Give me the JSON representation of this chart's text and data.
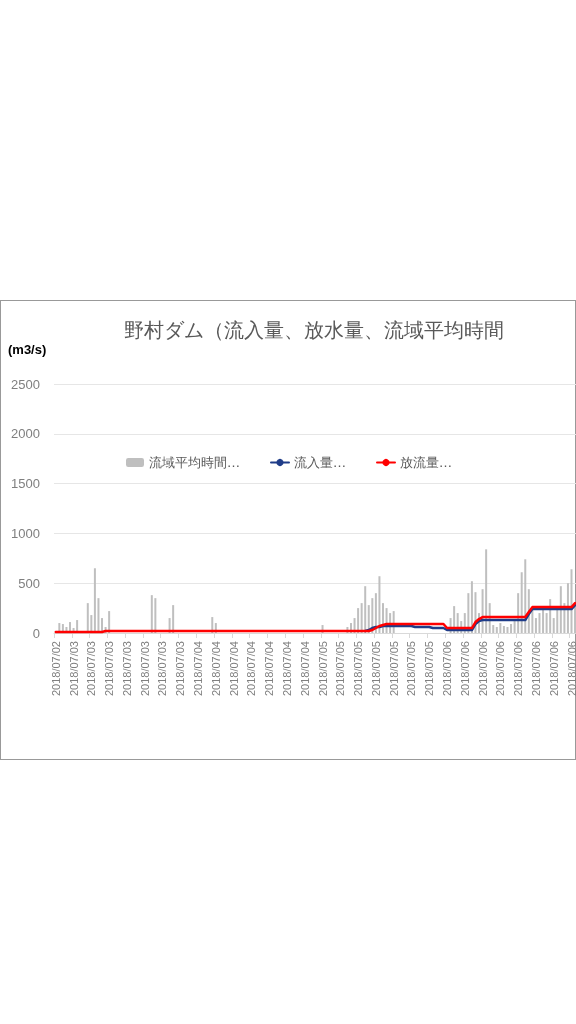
{
  "chart_data": {
    "type": "bar",
    "title": "野村ダム（流入量、放水量、流域平均時間",
    "ylabel": "(m3/s)",
    "categories": [
      "2018/07/02",
      null,
      null,
      null,
      null,
      "2018/07/03",
      null,
      null,
      null,
      null,
      "2018/07/03",
      null,
      null,
      null,
      null,
      "2018/07/03",
      null,
      null,
      null,
      null,
      "2018/07/03",
      null,
      null,
      null,
      null,
      "2018/07/03",
      null,
      null,
      null,
      null,
      "2018/07/03",
      null,
      null,
      null,
      null,
      "2018/07/03",
      null,
      null,
      null,
      null,
      "2018/07/04",
      null,
      null,
      null,
      null,
      "2018/07/04",
      null,
      null,
      null,
      null,
      "2018/07/04",
      null,
      null,
      null,
      null,
      "2018/07/04",
      null,
      null,
      null,
      null,
      "2018/07/04",
      null,
      null,
      null,
      null,
      "2018/07/04",
      null,
      null,
      null,
      null,
      "2018/07/04",
      null,
      null,
      null,
      null,
      "2018/07/05",
      null,
      null,
      null,
      null,
      "2018/07/05",
      null,
      null,
      null,
      null,
      "2018/07/05",
      null,
      null,
      null,
      null,
      "2018/07/05",
      null,
      null,
      null,
      null,
      "2018/07/05",
      null,
      null,
      null,
      null,
      "2018/07/05",
      null,
      null,
      null,
      null,
      "2018/07/05",
      null,
      null,
      null,
      null,
      "2018/07/06",
      null,
      null,
      null,
      null,
      "2018/07/06",
      null,
      null,
      null,
      null,
      "2018/07/06",
      null,
      null,
      null,
      null,
      "2018/07/06",
      null,
      null,
      null,
      null,
      "2018/07/06",
      null,
      null,
      null,
      null,
      "2018/07/06",
      null,
      null,
      null,
      null,
      "2018/07/06",
      null,
      null,
      null,
      null,
      "2018/07/06",
      null
    ],
    "series": [
      {
        "name": "流域平均時間…",
        "type": "bar",
        "color": "#bfbfbf",
        "values": [
          null,
          100,
          90,
          60,
          110,
          50,
          130,
          null,
          0,
          300,
          180,
          650,
          350,
          150,
          60,
          220,
          0,
          0,
          0,
          0,
          0,
          0,
          0,
          0,
          0,
          0,
          0,
          380,
          350,
          0,
          0,
          0,
          150,
          280,
          0,
          0,
          0,
          0,
          0,
          0,
          0,
          0,
          0,
          0,
          160,
          100,
          0,
          0,
          0,
          0,
          0,
          0,
          0,
          0,
          0,
          0,
          0,
          0,
          0,
          0,
          0,
          0,
          0,
          0,
          0,
          0,
          0,
          0,
          0,
          0,
          0,
          0,
          0,
          0,
          0,
          80,
          0,
          0,
          0,
          0,
          0,
          0,
          60,
          100,
          150,
          250,
          300,
          470,
          280,
          350,
          400,
          570,
          300,
          250,
          200,
          220,
          0,
          0,
          0,
          0,
          0,
          0,
          0,
          0,
          0,
          0,
          0,
          0,
          0,
          0,
          0,
          150,
          270,
          200,
          120,
          200,
          400,
          520,
          410,
          200,
          440,
          840,
          300,
          80,
          60,
          100,
          70,
          60,
          90,
          120,
          400,
          610,
          740,
          440,
          250,
          150,
          200,
          260,
          200,
          340,
          150,
          250,
          470,
          300,
          500,
          640,
          300
        ]
      },
      {
        "name": "流入量…",
        "type": "line",
        "color": "#1f3c88",
        "values": [
          null,
          null,
          null,
          null,
          null,
          null,
          null,
          null,
          null,
          null,
          null,
          null,
          null,
          null,
          null,
          null,
          null,
          null,
          null,
          null,
          null,
          null,
          null,
          null,
          null,
          null,
          null,
          null,
          null,
          null,
          null,
          null,
          null,
          null,
          null,
          null,
          null,
          null,
          null,
          null,
          null,
          null,
          null,
          null,
          null,
          null,
          null,
          null,
          null,
          null,
          null,
          null,
          null,
          null,
          null,
          null,
          null,
          null,
          null,
          null,
          null,
          null,
          null,
          null,
          null,
          null,
          null,
          null,
          null,
          null,
          null,
          null,
          null,
          null,
          null,
          null,
          null,
          null,
          null,
          null,
          null,
          null,
          null,
          null,
          null,
          null,
          null,
          20,
          30,
          50,
          60,
          60,
          70,
          70,
          70,
          70,
          70,
          70,
          70,
          70,
          70,
          60,
          60,
          60,
          60,
          60,
          50,
          50,
          50,
          50,
          30,
          30,
          30,
          30,
          30,
          30,
          30,
          30,
          90,
          120,
          130,
          130,
          130,
          130,
          130,
          130,
          130,
          130,
          130,
          130,
          130,
          130,
          130,
          190,
          240,
          240,
          240,
          240,
          240,
          240,
          240,
          240,
          240,
          240,
          240,
          240,
          280
        ]
      },
      {
        "name": "放流量…",
        "type": "line",
        "color": "#ff0000",
        "values": [
          10,
          10,
          10,
          10,
          10,
          10,
          10,
          10,
          10,
          10,
          10,
          10,
          10,
          10,
          20,
          20,
          20,
          20,
          20,
          20,
          20,
          20,
          20,
          20,
          20,
          20,
          20,
          20,
          20,
          20,
          20,
          20,
          20,
          20,
          20,
          20,
          20,
          20,
          20,
          20,
          20,
          20,
          20,
          20,
          20,
          20,
          20,
          20,
          20,
          20,
          20,
          20,
          20,
          20,
          20,
          20,
          20,
          20,
          20,
          20,
          20,
          20,
          20,
          20,
          20,
          20,
          20,
          20,
          20,
          20,
          20,
          20,
          20,
          20,
          20,
          20,
          20,
          20,
          20,
          20,
          20,
          20,
          20,
          20,
          20,
          20,
          20,
          20,
          20,
          30,
          50,
          70,
          80,
          90,
          90,
          90,
          90,
          90,
          90,
          90,
          90,
          90,
          90,
          90,
          90,
          90,
          90,
          90,
          90,
          90,
          50,
          50,
          50,
          50,
          50,
          50,
          50,
          50,
          110,
          140,
          160,
          160,
          160,
          160,
          160,
          160,
          160,
          160,
          160,
          160,
          160,
          160,
          160,
          210,
          260,
          260,
          260,
          260,
          260,
          260,
          260,
          260,
          260,
          260,
          260,
          260,
          300
        ]
      }
    ],
    "ylim": [
      0,
      2500
    ],
    "yticks": [
      0,
      500,
      {
        "value": 1000,
        "label": "1000"
      },
      {
        "value": 1500,
        "label": "1500"
      },
      {
        "value": 2000,
        "label": "2000"
      },
      {
        "value": 2500,
        "label": "2500"
      }
    ],
    "grid": "y",
    "legend": "top"
  }
}
